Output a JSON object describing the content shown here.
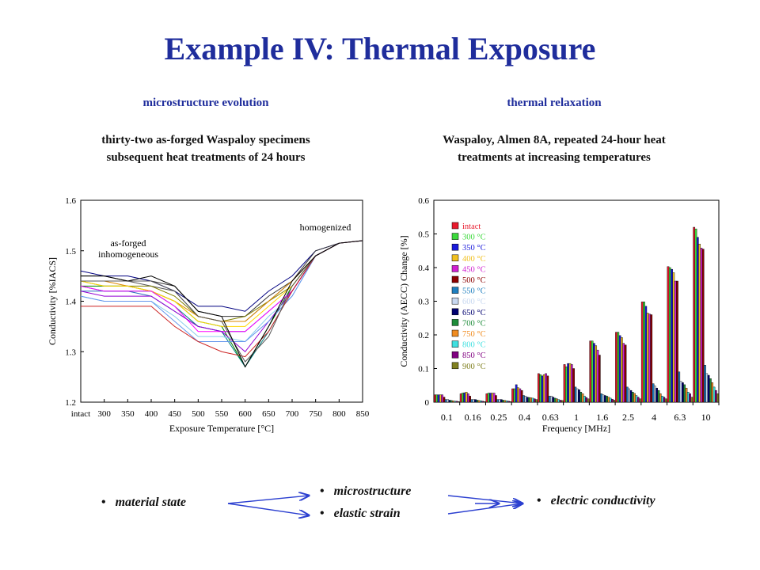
{
  "title": "Example IV: Thermal Exposure",
  "left": {
    "heading": "microstructure evolution",
    "caption_line1": "thirty-two as-forged Waspaloy specimens",
    "caption_line2": "subsequent heat treatments of 24 hours"
  },
  "right": {
    "heading": "thermal relaxation",
    "caption_line1": "Waspaloy, Almen 8A, repeated 24-hour heat",
    "caption_line2": "treatments at increasing temperatures"
  },
  "bottom": {
    "material_state": "material state",
    "microstructure": "microstructure",
    "elastic_strain": "elastic strain",
    "electric_conductivity": "electric conductivity",
    "bullet": "•"
  },
  "chart_data": [
    {
      "type": "line",
      "xlabel": "Exposure Temperature [°C]",
      "ylabel": "Conductivity [%IACS]",
      "categories": [
        "intact",
        "300",
        "350",
        "400",
        "450",
        "500",
        "550",
        "600",
        "650",
        "700",
        "750",
        "800",
        "850"
      ],
      "yticks": [
        "1.2",
        "1.3",
        "1.4",
        "1.5",
        "1.6"
      ],
      "ylim": [
        1.2,
        1.6
      ],
      "annotations": [
        "as-forged",
        "inhomogeneous",
        "homogenized"
      ],
      "series": [
        {
          "color": "#000080",
          "values": [
            1.46,
            1.45,
            1.45,
            1.44,
            1.42,
            1.39,
            1.39,
            1.38,
            1.42,
            1.45,
            1.5,
            1.515,
            1.52
          ]
        },
        {
          "color": "#333333",
          "values": [
            1.45,
            1.45,
            1.44,
            1.44,
            1.43,
            1.38,
            1.37,
            1.37,
            1.41,
            1.44,
            1.5,
            1.515,
            1.52
          ]
        },
        {
          "color": "#555555",
          "values": [
            1.44,
            1.44,
            1.44,
            1.43,
            1.42,
            1.37,
            1.36,
            1.36,
            1.4,
            1.44,
            1.49,
            1.515,
            1.52
          ]
        },
        {
          "color": "#808000",
          "values": [
            1.44,
            1.43,
            1.43,
            1.43,
            1.41,
            1.37,
            1.36,
            1.37,
            1.4,
            1.43,
            1.49,
            1.515,
            1.52
          ]
        },
        {
          "color": "#008000",
          "values": [
            1.43,
            1.43,
            1.43,
            1.42,
            1.4,
            1.36,
            1.35,
            1.27,
            1.35,
            1.43,
            1.49,
            1.515,
            1.52
          ]
        },
        {
          "color": "#008080",
          "values": [
            1.43,
            1.42,
            1.42,
            1.42,
            1.39,
            1.35,
            1.34,
            1.27,
            1.34,
            1.42,
            1.49,
            1.515,
            1.52
          ]
        },
        {
          "color": "#2a6abf",
          "values": [
            1.42,
            1.42,
            1.42,
            1.41,
            1.38,
            1.35,
            1.34,
            1.34,
            1.38,
            1.42,
            1.49,
            1.515,
            1.52
          ]
        },
        {
          "color": "#dd8800",
          "values": [
            1.44,
            1.44,
            1.43,
            1.42,
            1.4,
            1.37,
            1.36,
            1.36,
            1.4,
            1.44,
            1.49,
            1.515,
            1.52
          ]
        },
        {
          "color": "#ffd700",
          "values": [
            1.44,
            1.43,
            1.43,
            1.42,
            1.4,
            1.36,
            1.35,
            1.35,
            1.39,
            1.43,
            1.49,
            1.515,
            1.52
          ]
        },
        {
          "color": "#ff00ff",
          "values": [
            1.43,
            1.42,
            1.42,
            1.42,
            1.39,
            1.34,
            1.34,
            1.34,
            1.38,
            1.42,
            1.49,
            1.515,
            1.52
          ]
        },
        {
          "color": "#9400d3",
          "values": [
            1.42,
            1.41,
            1.41,
            1.41,
            1.38,
            1.35,
            1.34,
            1.3,
            1.36,
            1.42,
            1.49,
            1.515,
            1.52
          ]
        },
        {
          "color": "#87ceeb",
          "values": [
            1.41,
            1.4,
            1.4,
            1.4,
            1.37,
            1.33,
            1.33,
            1.32,
            1.37,
            1.41,
            1.49,
            1.515,
            1.52
          ]
        },
        {
          "color": "#6495ed",
          "values": [
            1.41,
            1.4,
            1.4,
            1.4,
            1.36,
            1.32,
            1.32,
            1.32,
            1.36,
            1.41,
            1.49,
            1.515,
            1.52
          ]
        },
        {
          "color": "#cc2222",
          "values": [
            1.39,
            1.39,
            1.39,
            1.39,
            1.35,
            1.32,
            1.3,
            1.29,
            1.34,
            1.42,
            1.49,
            1.515,
            1.52
          ]
        },
        {
          "color": "#555555",
          "values": [
            1.44,
            1.44,
            1.44,
            1.44,
            1.42,
            1.37,
            1.36,
            1.28,
            1.33,
            1.43,
            1.49,
            1.515,
            1.52
          ]
        },
        {
          "color": "#000000",
          "values": [
            1.45,
            1.45,
            1.44,
            1.45,
            1.43,
            1.38,
            1.37,
            1.27,
            1.35,
            1.44,
            1.49,
            1.515,
            1.52
          ]
        }
      ]
    },
    {
      "type": "bar",
      "xlabel": "Frequency [MHz]",
      "ylabel": "Conductivity (AECC) Change [%]",
      "categories": [
        "0.1",
        "0.16",
        "0.25",
        "0.4",
        "0.63",
        "1",
        "1.6",
        "2.5",
        "4",
        "6.3",
        "10"
      ],
      "yticks": [
        "0",
        "0.1",
        "0.2",
        "0.3",
        "0.4",
        "0.5",
        "0.6"
      ],
      "ylim": [
        0,
        0.6
      ],
      "legend_position": "top-left",
      "series": [
        {
          "name": "intact",
          "color": "#e8192c",
          "values": [
            0.022,
            0.025,
            0.025,
            0.04,
            0.085,
            0.112,
            0.182,
            0.208,
            0.298,
            0.403,
            0.52
          ]
        },
        {
          "name": "300 °C",
          "color": "#3bd93b",
          "values": [
            0.022,
            0.027,
            0.027,
            0.04,
            0.082,
            0.105,
            0.182,
            0.208,
            0.298,
            0.4,
            0.515
          ]
        },
        {
          "name": "350 °C",
          "color": "#1a1adb",
          "values": [
            0.022,
            0.028,
            0.027,
            0.052,
            0.078,
            0.115,
            0.175,
            0.198,
            0.285,
            0.395,
            0.49
          ]
        },
        {
          "name": "400 °C",
          "color": "#f0c020",
          "values": [
            0.022,
            0.03,
            0.027,
            0.043,
            0.082,
            0.115,
            0.168,
            0.192,
            0.265,
            0.385,
            0.47
          ]
        },
        {
          "name": "450 °C",
          "color": "#d020d0",
          "values": [
            0.022,
            0.025,
            0.027,
            0.04,
            0.085,
            0.112,
            0.155,
            0.175,
            0.262,
            0.36,
            0.458
          ]
        },
        {
          "name": "500 °C",
          "color": "#8b0000",
          "values": [
            0.015,
            0.018,
            0.02,
            0.035,
            0.078,
            0.1,
            0.14,
            0.17,
            0.26,
            0.36,
            0.455
          ]
        },
        {
          "name": "550 °C",
          "color": "#1f7fbf",
          "values": [
            0.008,
            0.008,
            0.008,
            0.02,
            0.018,
            0.045,
            0.025,
            0.045,
            0.055,
            0.09,
            0.11
          ]
        },
        {
          "name": "600 °C",
          "color": "#c8d8f0",
          "values": [
            0.008,
            0.008,
            0.008,
            0.018,
            0.018,
            0.04,
            0.022,
            0.04,
            0.048,
            0.062,
            0.085
          ]
        },
        {
          "name": "650 °C",
          "color": "#000070",
          "values": [
            0.006,
            0.008,
            0.008,
            0.015,
            0.015,
            0.037,
            0.02,
            0.035,
            0.042,
            0.058,
            0.08
          ]
        },
        {
          "name": "700 °C",
          "color": "#1e8c3a",
          "values": [
            0.005,
            0.006,
            0.006,
            0.014,
            0.012,
            0.03,
            0.018,
            0.03,
            0.035,
            0.052,
            0.07
          ]
        },
        {
          "name": "750 °C",
          "color": "#f08c20",
          "values": [
            0.004,
            0.005,
            0.005,
            0.013,
            0.01,
            0.025,
            0.015,
            0.026,
            0.025,
            0.042,
            0.058
          ]
        },
        {
          "name": "800 °C",
          "color": "#40e0e0",
          "values": [
            0.003,
            0.004,
            0.004,
            0.012,
            0.008,
            0.018,
            0.012,
            0.02,
            0.018,
            0.03,
            0.045
          ]
        },
        {
          "name": "850 °C",
          "color": "#800080",
          "values": [
            0.003,
            0.003,
            0.003,
            0.01,
            0.006,
            0.014,
            0.009,
            0.015,
            0.015,
            0.025,
            0.035
          ]
        },
        {
          "name": "900 °C",
          "color": "#808020",
          "values": [
            0.002,
            0.002,
            0.002,
            0.008,
            0.005,
            0.01,
            0.006,
            0.01,
            0.01,
            0.015,
            0.025
          ]
        }
      ]
    }
  ]
}
